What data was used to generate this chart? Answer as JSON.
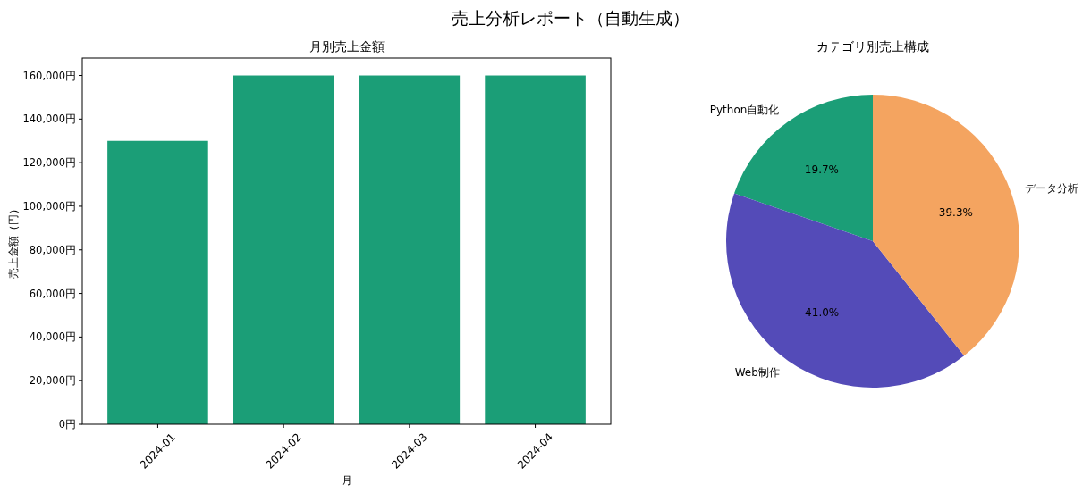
{
  "chart_data": [
    {
      "type": "bar",
      "title": "月別売上金額",
      "annotations": [
        "売上分析レポート（自動生成）"
      ],
      "xlabel": "月",
      "ylabel": "売上金額（円）",
      "categories": [
        "2024-01",
        "2024-02",
        "2024-03",
        "2024-04"
      ],
      "values": [
        130000,
        160000,
        160000,
        160000
      ],
      "color": "#1b9e77",
      "ylim": [
        0,
        168000
      ],
      "yticks": [
        {
          "value": 0,
          "label": "0円"
        },
        {
          "value": 20000,
          "label": "20,000円"
        },
        {
          "value": 40000,
          "label": "40,000円"
        },
        {
          "value": 60000,
          "label": "60,000円"
        },
        {
          "value": 80000,
          "label": "80,000円"
        },
        {
          "value": 100000,
          "label": "100,000円"
        },
        {
          "value": 120000,
          "label": "120,000円"
        },
        {
          "value": 140000,
          "label": "140,000円"
        },
        {
          "value": 160000,
          "label": "160,000円"
        }
      ],
      "grid": false
    },
    {
      "type": "pie",
      "title": "カテゴリ別売上構成",
      "categories": [
        "Python自動化",
        "Web制作",
        "データ分析"
      ],
      "values": [
        19.7,
        41.0,
        39.3
      ],
      "colors": [
        "#1b9e77",
        "#544bb8",
        "#f4a460"
      ],
      "value_labels": [
        "19.7%",
        "41.0%",
        "39.3%"
      ]
    }
  ]
}
